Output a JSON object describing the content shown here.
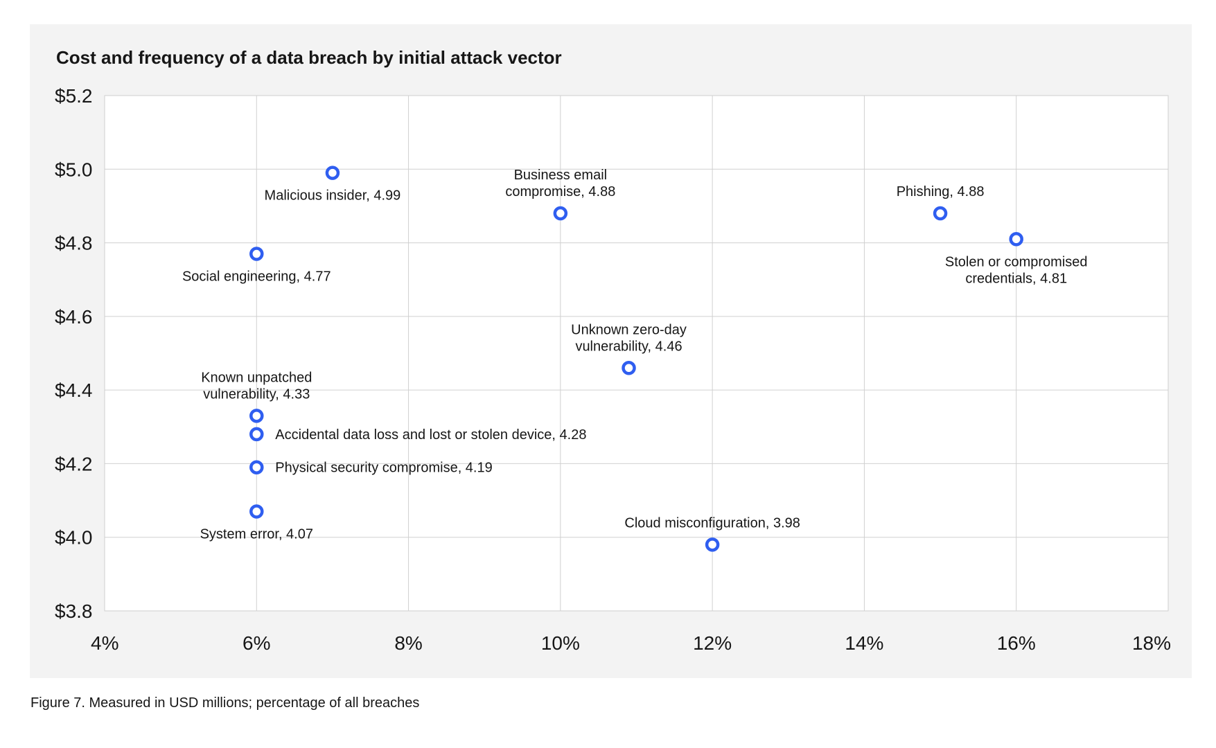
{
  "chart_data": {
    "type": "scatter",
    "title": "Cost and frequency of a data breach by initial attack vector",
    "xlim": [
      4,
      18
    ],
    "ylim": [
      3.8,
      5.2
    ],
    "x_ticks": [
      4,
      6,
      8,
      10,
      12,
      14,
      16,
      18
    ],
    "y_ticks": [
      3.8,
      4.0,
      4.2,
      4.4,
      4.6,
      4.8,
      5.0,
      5.2
    ],
    "x_tick_labels": [
      "4%",
      "6%",
      "8%",
      "10%",
      "12%",
      "14%",
      "16%",
      "18%"
    ],
    "y_tick_labels": [
      "$3.8",
      "$4.0",
      "$4.2",
      "$4.4",
      "$4.6",
      "$4.8",
      "$5.0",
      "$5.2"
    ],
    "grid": true,
    "marker_color": "#2f5ef0",
    "points": [
      {
        "label": "Malicious insider, 4.99",
        "x": 7,
        "y": 4.99,
        "anchor": "below",
        "lines": [
          "Malicious insider, 4.99"
        ]
      },
      {
        "label": "Business email compromise, 4.88",
        "x": 10,
        "y": 4.88,
        "anchor": "above",
        "lines": [
          "Business email",
          "compromise, 4.88"
        ]
      },
      {
        "label": "Phishing, 4.88",
        "x": 15,
        "y": 4.88,
        "anchor": "above",
        "lines": [
          "Phishing, 4.88"
        ]
      },
      {
        "label": "Stolen or compromised credentials, 4.81",
        "x": 16,
        "y": 4.81,
        "anchor": "below",
        "lines": [
          "Stolen or compromised",
          "credentials, 4.81"
        ]
      },
      {
        "label": "Social engineering, 4.77",
        "x": 6,
        "y": 4.77,
        "anchor": "below",
        "lines": [
          "Social engineering, 4.77"
        ]
      },
      {
        "label": "Unknown zero-day vulnerability, 4.46",
        "x": 10.9,
        "y": 4.46,
        "anchor": "above",
        "lines": [
          "Unknown zero-day",
          "vulnerability, 4.46"
        ]
      },
      {
        "label": "Known unpatched vulnerability, 4.33",
        "x": 6,
        "y": 4.33,
        "anchor": "above",
        "lines": [
          "Known unpatched",
          "vulnerability, 4.33"
        ]
      },
      {
        "label": "Accidental data loss and lost or stolen device, 4.28",
        "x": 6,
        "y": 4.28,
        "anchor": "right",
        "lines": [
          "Accidental data loss and lost or stolen device, 4.28"
        ]
      },
      {
        "label": "Physical security compromise, 4.19",
        "x": 6,
        "y": 4.19,
        "anchor": "right",
        "lines": [
          "Physical security compromise, 4.19"
        ]
      },
      {
        "label": "System error, 4.07",
        "x": 6,
        "y": 4.07,
        "anchor": "below",
        "lines": [
          "System error, 4.07"
        ]
      },
      {
        "label": "Cloud misconfiguration, 3.98",
        "x": 12,
        "y": 3.98,
        "anchor": "above",
        "lines": [
          "Cloud misconfiguration, 3.98"
        ]
      }
    ]
  },
  "caption": "Figure 7. Measured in USD millions; percentage of all breaches"
}
